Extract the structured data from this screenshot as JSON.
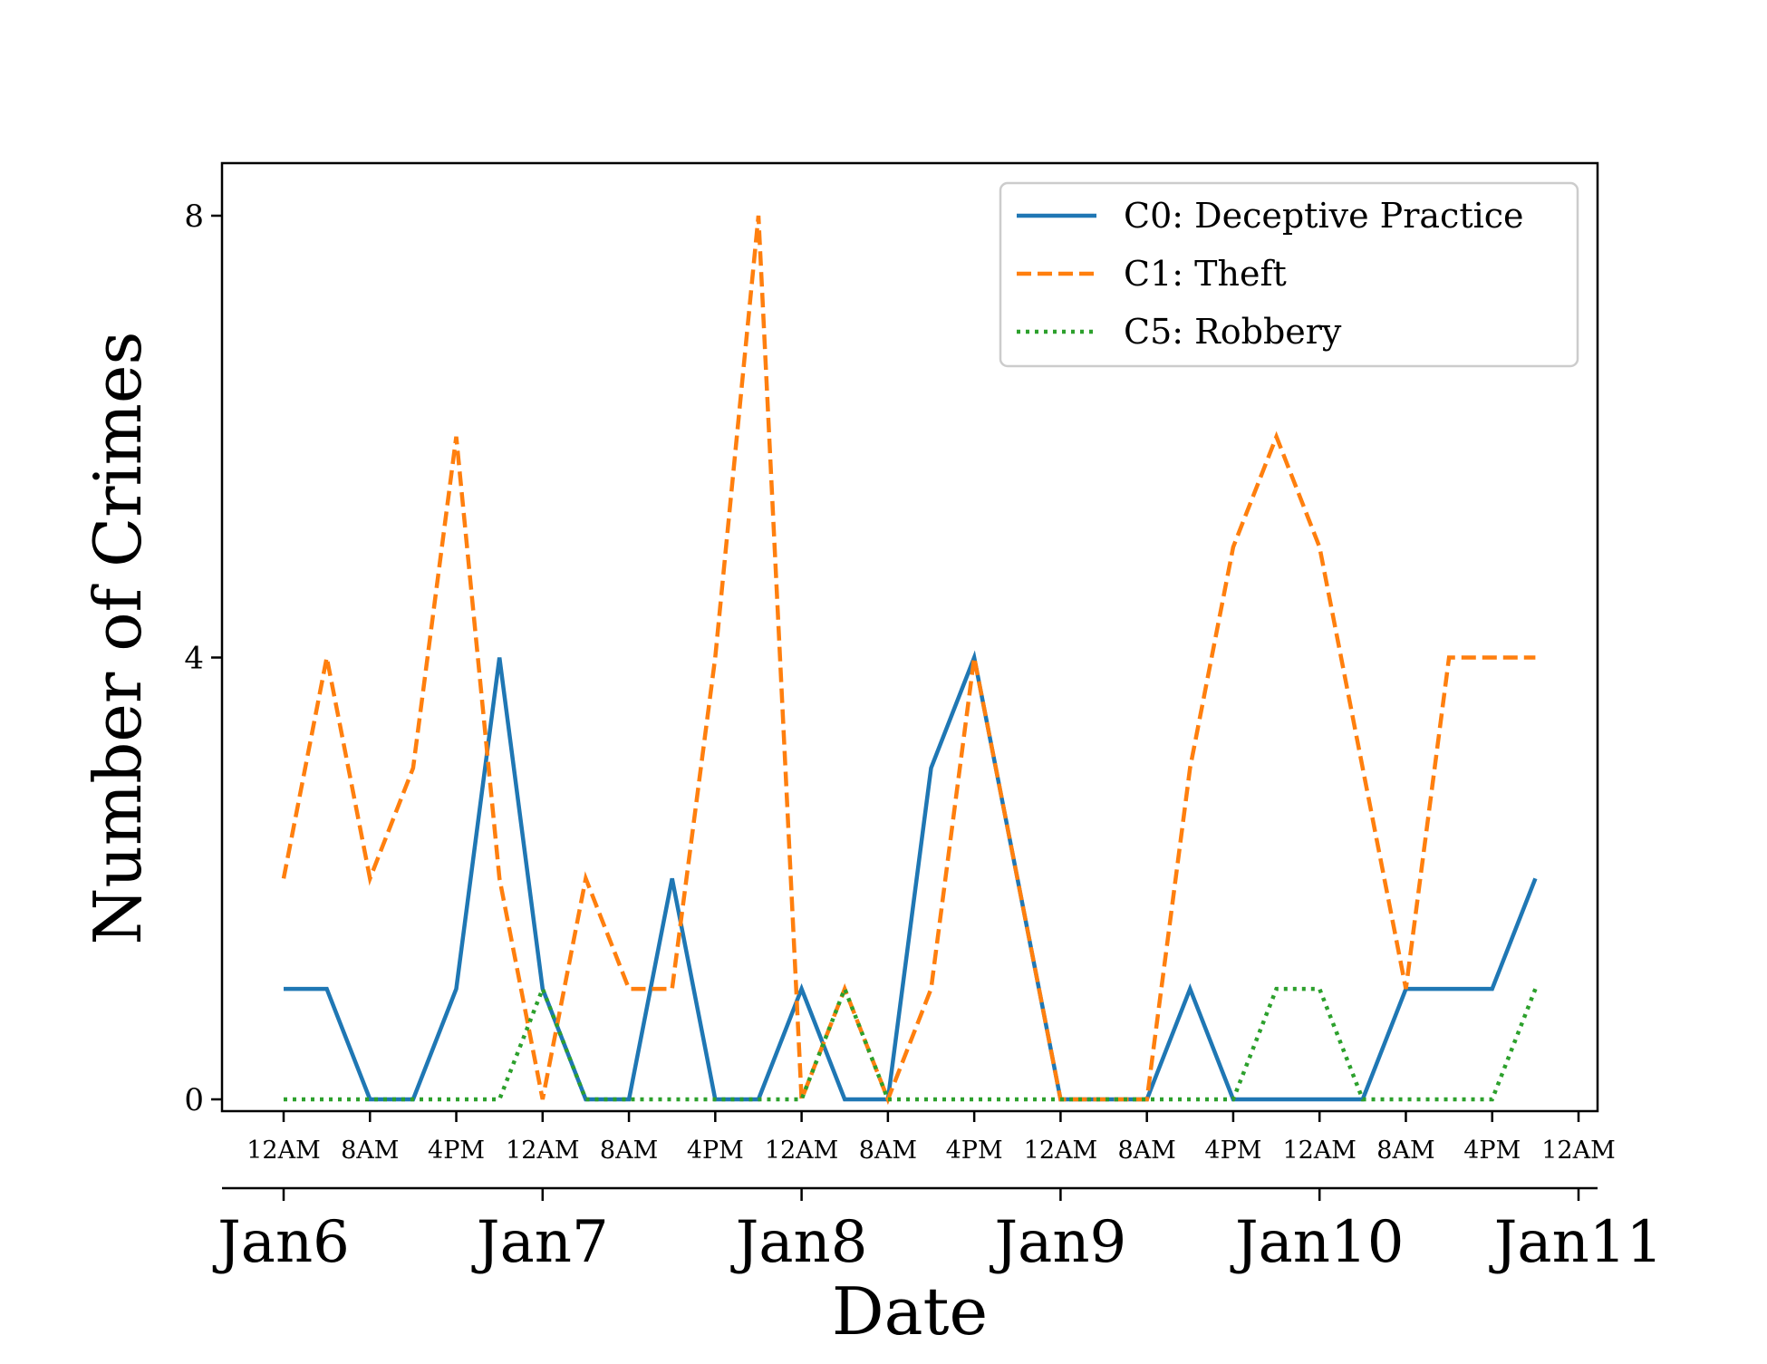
{
  "chart_data": {
    "type": "line",
    "xlabel": "Date",
    "ylabel": "Number of Crimes",
    "ylim": [
      0,
      8
    ],
    "y_ticks": [
      0,
      4,
      8
    ],
    "x_range": [
      "2016-01-06T00:00",
      "2016-01-11T00:00"
    ],
    "x": [
      "Jan6 12AM",
      "Jan6 4AM",
      "Jan6 8AM",
      "Jan6 12PM",
      "Jan6 4PM",
      "Jan6 8PM",
      "Jan7 12AM",
      "Jan7 4AM",
      "Jan7 8AM",
      "Jan7 12PM",
      "Jan7 4PM",
      "Jan7 8PM",
      "Jan8 12AM",
      "Jan8 4AM",
      "Jan8 8AM",
      "Jan8 12PM",
      "Jan8 4PM",
      "Jan8 8PM",
      "Jan9 12AM",
      "Jan9 4AM",
      "Jan9 8AM",
      "Jan9 12PM",
      "Jan9 4PM",
      "Jan9 8PM",
      "Jan10 12AM",
      "Jan10 4AM",
      "Jan10 8AM",
      "Jan10 12PM",
      "Jan10 4PM",
      "Jan10 8PM"
    ],
    "series": [
      {
        "name": "C0: Deceptive Practice",
        "color": "#1f77b4",
        "linestyle": "solid",
        "values": [
          1,
          1,
          0,
          0,
          1,
          4,
          1,
          0,
          0,
          2,
          0,
          0,
          1,
          0,
          0,
          3,
          4,
          2,
          0,
          0,
          0,
          1,
          0,
          0,
          0,
          0,
          1,
          1,
          1,
          2
        ]
      },
      {
        "name": "C1: Theft",
        "color": "#ff7f0e",
        "linestyle": "dashed",
        "values": [
          2,
          4,
          2,
          3,
          6,
          2,
          0,
          2,
          1,
          1,
          4,
          8,
          0,
          1,
          0,
          1,
          4,
          2,
          0,
          0,
          0,
          3,
          5,
          6,
          5,
          3,
          1,
          4,
          4,
          4
        ]
      },
      {
        "name": "C5: Robbery",
        "color": "#2ca02c",
        "linestyle": "dotted",
        "values": [
          0,
          0,
          0,
          0,
          0,
          0,
          1,
          0,
          0,
          0,
          0,
          0,
          0,
          1,
          0,
          0,
          0,
          0,
          0,
          0,
          0,
          0,
          0,
          1,
          1,
          0,
          0,
          0,
          0,
          1
        ]
      }
    ],
    "hour_ticks": [
      "12AM",
      "8AM",
      "4PM",
      "12AM",
      "8AM",
      "4PM",
      "12AM",
      "8AM",
      "4PM",
      "12AM",
      "8AM",
      "4PM",
      "12AM",
      "8AM",
      "4PM",
      "12AM"
    ],
    "day_ticks": [
      "Jan6",
      "Jan7",
      "Jan8",
      "Jan9",
      "Jan10",
      "Jan11"
    ],
    "grid": false,
    "legend_position": "top-right"
  }
}
